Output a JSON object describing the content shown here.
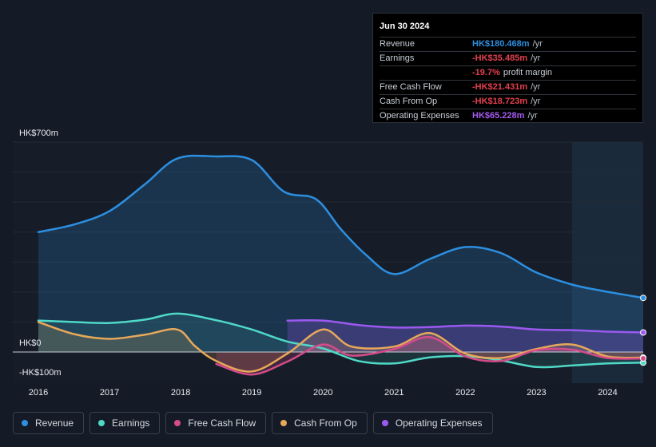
{
  "tooltip": {
    "date": "Jun 30 2024",
    "rows": [
      {
        "label": "Revenue",
        "value": "HK$180.468m",
        "unit": "/yr",
        "color": "#2d8fe0"
      },
      {
        "label": "Earnings",
        "value": "-HK$35.485m",
        "unit": "/yr",
        "color": "#e4404f"
      },
      {
        "label": "",
        "value": "-19.7%",
        "unit": "profit margin",
        "color": "#e4404f"
      },
      {
        "label": "Free Cash Flow",
        "value": "-HK$21.431m",
        "unit": "/yr",
        "color": "#e4404f"
      },
      {
        "label": "Cash From Op",
        "value": "-HK$18.723m",
        "unit": "/yr",
        "color": "#e4404f"
      },
      {
        "label": "Operating Expenses",
        "value": "HK$65.228m",
        "unit": "/yr",
        "color": "#a35cf0"
      }
    ]
  },
  "legend": [
    {
      "label": "Revenue",
      "color": "#2d8fe0"
    },
    {
      "label": "Earnings",
      "color": "#4fd9c7"
    },
    {
      "label": "Free Cash Flow",
      "color": "#d44c8a"
    },
    {
      "label": "Cash From Op",
      "color": "#e8a85a"
    },
    {
      "label": "Operating Expenses",
      "color": "#9b59f0"
    }
  ],
  "chart_data": {
    "type": "area",
    "title": "",
    "xlabel": "",
    "ylabel": "",
    "ylim": [
      -100,
      700
    ],
    "xlim": [
      2015.65,
      2024.5
    ],
    "y_top_label": "HK$700m",
    "y_zero_label": "HK$0",
    "y_bottom_label": "-HK$100m",
    "x_ticks": [
      {
        "value": 2016,
        "label": "2016"
      },
      {
        "value": 2017,
        "label": "2017"
      },
      {
        "value": 2018,
        "label": "2018"
      },
      {
        "value": 2019,
        "label": "2019"
      },
      {
        "value": 2020,
        "label": "2020"
      },
      {
        "value": 2021,
        "label": "2021"
      },
      {
        "value": 2022,
        "label": "2022"
      },
      {
        "value": 2023,
        "label": "2023"
      },
      {
        "value": 2024,
        "label": "2024"
      }
    ],
    "highlight_from": 2023.5,
    "series": [
      {
        "name": "Revenue",
        "color": "#2d8fe0",
        "points": [
          [
            2016.0,
            400
          ],
          [
            2016.5,
            425
          ],
          [
            2017.0,
            470
          ],
          [
            2017.5,
            560
          ],
          [
            2017.95,
            645
          ],
          [
            2018.5,
            652
          ],
          [
            2019.0,
            640
          ],
          [
            2019.45,
            535
          ],
          [
            2019.9,
            510
          ],
          [
            2020.25,
            410
          ],
          [
            2020.6,
            325
          ],
          [
            2021.0,
            260
          ],
          [
            2021.5,
            310
          ],
          [
            2022.0,
            350
          ],
          [
            2022.5,
            330
          ],
          [
            2023.0,
            265
          ],
          [
            2023.5,
            225
          ],
          [
            2023.9,
            205
          ],
          [
            2024.5,
            180.468
          ]
        ]
      },
      {
        "name": "Earnings",
        "color": "#4fd9c7",
        "points": [
          [
            2016.0,
            105
          ],
          [
            2016.5,
            100
          ],
          [
            2017.0,
            97
          ],
          [
            2017.5,
            108
          ],
          [
            2017.95,
            128
          ],
          [
            2018.5,
            106
          ],
          [
            2019.0,
            75
          ],
          [
            2019.5,
            35
          ],
          [
            2020.0,
            12
          ],
          [
            2020.5,
            -30
          ],
          [
            2021.0,
            -38
          ],
          [
            2021.5,
            -18
          ],
          [
            2022.0,
            -14
          ],
          [
            2022.5,
            -28
          ],
          [
            2023.0,
            -50
          ],
          [
            2023.5,
            -45
          ],
          [
            2024.0,
            -38
          ],
          [
            2024.5,
            -35.485
          ]
        ]
      },
      {
        "name": "Free Cash Flow",
        "color": "#d44c8a",
        "points": [
          [
            2018.5,
            -40
          ],
          [
            2019.0,
            -75
          ],
          [
            2019.5,
            -32
          ],
          [
            2020.0,
            25
          ],
          [
            2020.4,
            -12
          ],
          [
            2021.0,
            10
          ],
          [
            2021.5,
            50
          ],
          [
            2022.0,
            -15
          ],
          [
            2022.5,
            -30
          ],
          [
            2023.0,
            6
          ],
          [
            2023.5,
            8
          ],
          [
            2024.0,
            -20
          ],
          [
            2024.5,
            -21.431
          ]
        ]
      },
      {
        "name": "Cash From Op",
        "color": "#e8a85a",
        "points": [
          [
            2016.0,
            100
          ],
          [
            2016.5,
            60
          ],
          [
            2017.0,
            44
          ],
          [
            2017.5,
            58
          ],
          [
            2017.95,
            75
          ],
          [
            2018.2,
            20
          ],
          [
            2018.5,
            -30
          ],
          [
            2019.0,
            -65
          ],
          [
            2019.5,
            -5
          ],
          [
            2020.0,
            75
          ],
          [
            2020.4,
            18
          ],
          [
            2021.0,
            18
          ],
          [
            2021.5,
            63
          ],
          [
            2022.0,
            -5
          ],
          [
            2022.5,
            -20
          ],
          [
            2023.0,
            10
          ],
          [
            2023.5,
            25
          ],
          [
            2024.0,
            -15
          ],
          [
            2024.5,
            -18.723
          ]
        ]
      },
      {
        "name": "Operating Expenses",
        "color": "#9b59f0",
        "points": [
          [
            2019.5,
            105
          ],
          [
            2020.0,
            105
          ],
          [
            2020.5,
            90
          ],
          [
            2021.0,
            82
          ],
          [
            2021.5,
            83
          ],
          [
            2022.0,
            88
          ],
          [
            2022.5,
            85
          ],
          [
            2023.0,
            75
          ],
          [
            2023.5,
            73
          ],
          [
            2024.0,
            68
          ],
          [
            2024.5,
            65.228
          ]
        ]
      }
    ]
  }
}
